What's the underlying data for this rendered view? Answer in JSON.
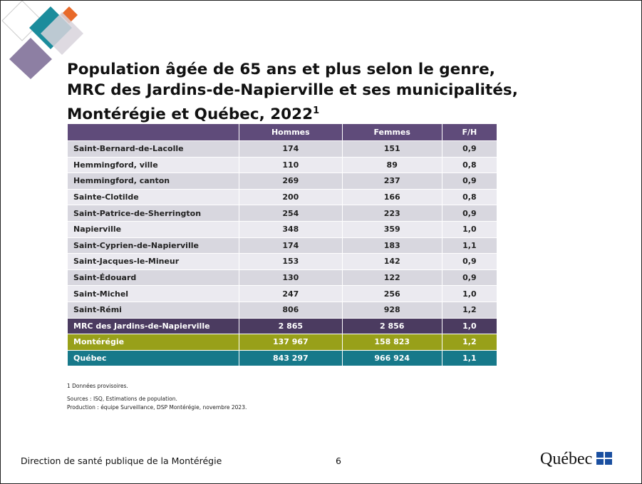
{
  "slide": {
    "title": [
      "Population âgée de 65 ans et plus selon le genre,",
      "MRC des Jardins-de-Napierville et ses municipalités,",
      "Montérégie et Québec, 2022"
    ],
    "title_note": "1",
    "table": {
      "header": [
        "",
        "Hommes",
        "Femmes",
        "F/H"
      ],
      "rows": [
        [
          "Saint-Bernard-de-Lacolle",
          "174",
          "151",
          "0,9"
        ],
        [
          "Hemmingford, ville",
          "110",
          "89",
          "0,8"
        ],
        [
          "Hemmingford, canton",
          "269",
          "237",
          "0,9"
        ],
        [
          "Sainte-Clotilde",
          "200",
          "166",
          "0,8"
        ],
        [
          "Saint-Patrice-de-Sherrington",
          "254",
          "223",
          "0,9"
        ],
        [
          "Napierville",
          "348",
          "359",
          "1,0"
        ],
        [
          "Saint-Cyprien-de-Napierville",
          "174",
          "183",
          "1,1"
        ],
        [
          "Saint-Jacques-le-Mineur",
          "153",
          "142",
          "0,9"
        ],
        [
          "Saint-Édouard",
          "130",
          "122",
          "0,9"
        ],
        [
          "Saint-Michel",
          "247",
          "256",
          "1,0"
        ],
        [
          "Saint-Rémi",
          "806",
          "928",
          "1,2"
        ]
      ],
      "totals": [
        {
          "cells": [
            "MRC des Jardins-de-Napierville",
            "2 865",
            "2 856",
            "1,0"
          ],
          "color": "#4b3b60"
        },
        {
          "cells": [
            "Montérégie",
            "137 967",
            "158 823",
            "1,2"
          ],
          "color": "#98a019"
        },
        {
          "cells": [
            "Québec",
            "843 297",
            "966 924",
            "1,1"
          ],
          "color": "#17798a"
        }
      ]
    },
    "notes": [
      "1 Données provisoires.",
      "Sources : ISQ, Estimations de population.",
      "Production : équipe Surveillance, DSP Montérégie,  novembre 2023."
    ],
    "footer": "Direction de santé publique de la Montérégie",
    "page_number": "6",
    "logo": "Québec"
  }
}
